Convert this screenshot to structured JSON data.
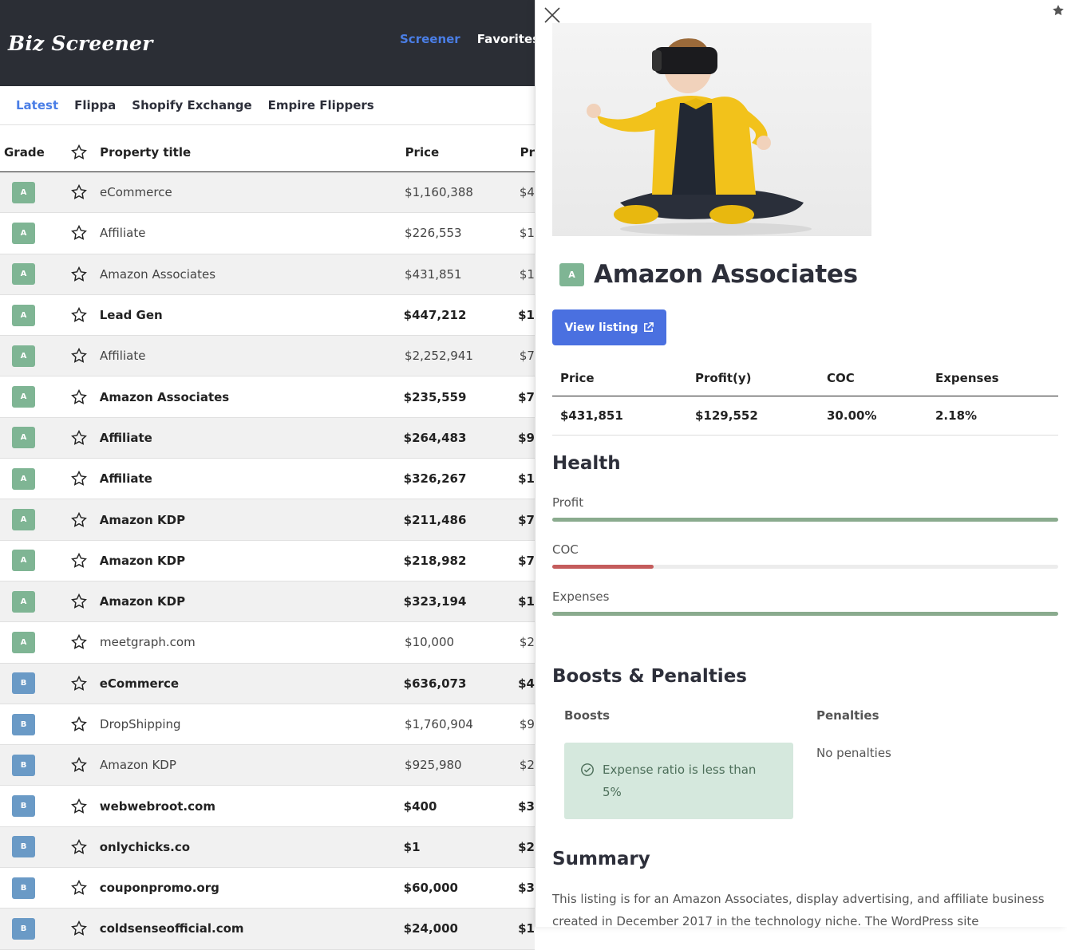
{
  "header": {
    "logo": "Biz Screener",
    "nav": [
      {
        "label": "Screener",
        "active": true
      },
      {
        "label": "Favorites",
        "active": false
      }
    ]
  },
  "tabs": [
    {
      "label": "Latest",
      "active": true
    },
    {
      "label": "Flippa",
      "active": false
    },
    {
      "label": "Shopify Exchange",
      "active": false
    },
    {
      "label": "Empire Flippers",
      "active": false
    }
  ],
  "table": {
    "columns": {
      "grade": "Grade",
      "title": "Property title",
      "price": "Price",
      "profit": "Pr"
    },
    "rows": [
      {
        "grade": "A",
        "title": "eCommerce",
        "price": "$1,160,388",
        "profit": "$4",
        "bold": false
      },
      {
        "grade": "A",
        "title": "Affiliate",
        "price": "$226,553",
        "profit": "$1",
        "bold": false
      },
      {
        "grade": "A",
        "title": "Amazon Associates",
        "price": "$431,851",
        "profit": "$1",
        "bold": false
      },
      {
        "grade": "A",
        "title": "Lead Gen",
        "price": "$447,212",
        "profit": "$1",
        "bold": true
      },
      {
        "grade": "A",
        "title": "Affiliate",
        "price": "$2,252,941",
        "profit": "$7",
        "bold": false
      },
      {
        "grade": "A",
        "title": "Amazon Associates",
        "price": "$235,559",
        "profit": "$7",
        "bold": true
      },
      {
        "grade": "A",
        "title": "Affiliate",
        "price": "$264,483",
        "profit": "$9",
        "bold": true
      },
      {
        "grade": "A",
        "title": "Affiliate",
        "price": "$326,267",
        "profit": "$1",
        "bold": true
      },
      {
        "grade": "A",
        "title": "Amazon KDP",
        "price": "$211,486",
        "profit": "$7",
        "bold": true
      },
      {
        "grade": "A",
        "title": "Amazon KDP",
        "price": "$218,982",
        "profit": "$7",
        "bold": true
      },
      {
        "grade": "A",
        "title": "Amazon KDP",
        "price": "$323,194",
        "profit": "$1",
        "bold": true
      },
      {
        "grade": "A",
        "title": "meetgraph.com",
        "price": "$10,000",
        "profit": "$2",
        "bold": false
      },
      {
        "grade": "B",
        "title": "eCommerce",
        "price": "$636,073",
        "profit": "$4",
        "bold": true
      },
      {
        "grade": "B",
        "title": "DropShipping",
        "price": "$1,760,904",
        "profit": "$9",
        "bold": false
      },
      {
        "grade": "B",
        "title": "Amazon KDP",
        "price": "$925,980",
        "profit": "$2",
        "bold": false
      },
      {
        "grade": "B",
        "title": "webwebroot.com",
        "price": "$400",
        "profit": "$3",
        "bold": true
      },
      {
        "grade": "B",
        "title": "onlychicks.co",
        "price": "$1",
        "profit": "$2",
        "bold": true
      },
      {
        "grade": "B",
        "title": "couponpromo.org",
        "price": "$60,000",
        "profit": "$3",
        "bold": true
      },
      {
        "grade": "B",
        "title": "coldsenseofficial.com",
        "price": "$24,000",
        "profit": "$1",
        "bold": true
      }
    ]
  },
  "drawer": {
    "grade": "A",
    "title": "Amazon Associates",
    "view_button": "View listing",
    "stats": {
      "headers": [
        "Price",
        "Profit(y)",
        "COC",
        "Expenses"
      ],
      "values": [
        "$431,851",
        "$129,552",
        "30.00%",
        "2.18%"
      ]
    },
    "health": {
      "title": "Health",
      "bars": [
        {
          "label": "Profit",
          "level": 1.0,
          "color": "#8aab8e"
        },
        {
          "label": "COC",
          "level": 0.2,
          "color": "#c45c5c"
        },
        {
          "label": "Expenses",
          "level": 1.0,
          "color": "#8aab8e"
        }
      ]
    },
    "boosts": {
      "title": "Boosts & Penalties",
      "boosts_header": "Boosts",
      "penalties_header": "Penalties",
      "boost_items": [
        "Expense ratio is less than 5%"
      ],
      "no_penalties": "No penalties"
    },
    "summary": {
      "title": "Summary",
      "text": "This listing is for an Amazon Associates, display advertising, and affiliate business created in December 2017 in the technology niche. The WordPress site"
    }
  },
  "colors": {
    "accent": "#4a7ee6",
    "header_bg": "#2b2e35",
    "grade_a": "#7fb594",
    "grade_b": "#6a9ac6"
  }
}
